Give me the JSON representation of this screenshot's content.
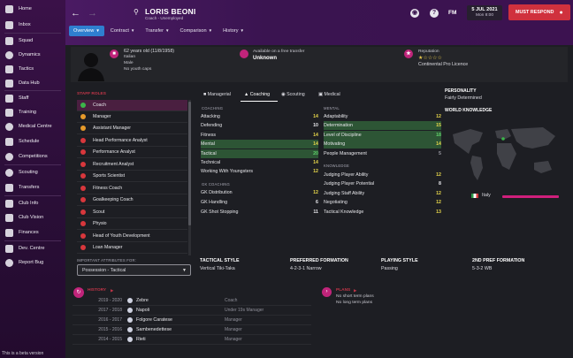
{
  "sidebar": {
    "items": [
      {
        "label": "Home",
        "icon": "home-icon"
      },
      {
        "label": "Inbox",
        "icon": "inbox-icon"
      },
      {
        "label": "Squad",
        "icon": "squad-icon"
      },
      {
        "label": "Dynamics",
        "icon": "dynamics-icon"
      },
      {
        "label": "Tactics",
        "icon": "tactics-icon"
      },
      {
        "label": "Data Hub",
        "icon": "data-hub-icon"
      },
      {
        "label": "Staff",
        "icon": "staff-icon"
      },
      {
        "label": "Training",
        "icon": "training-icon"
      },
      {
        "label": "Medical Centre",
        "icon": "medical-icon"
      },
      {
        "label": "Schedule",
        "icon": "schedule-icon"
      },
      {
        "label": "Competitions",
        "icon": "competitions-icon"
      },
      {
        "label": "Scouting",
        "icon": "scouting-icon"
      },
      {
        "label": "Transfers",
        "icon": "transfers-icon"
      },
      {
        "label": "Club Info",
        "icon": "club-info-icon"
      },
      {
        "label": "Club Vision",
        "icon": "club-vision-icon"
      },
      {
        "label": "Finances",
        "icon": "finances-icon"
      },
      {
        "label": "Dev. Centre",
        "icon": "dev-centre-icon"
      },
      {
        "label": "Report Bug",
        "icon": "report-bug-icon"
      }
    ],
    "beta_text": "This is a beta version"
  },
  "header": {
    "player_name": "LORIS BEONI",
    "player_sub": "Coach - Unemployed",
    "fm": "FM",
    "date": "5 JUL 2021",
    "day_time": "Mon 8:00",
    "must_respond": "MUST RESPOND",
    "tabs": [
      {
        "label": "Overview",
        "active": true
      },
      {
        "label": "Contract",
        "active": false
      },
      {
        "label": "Transfer",
        "active": false
      },
      {
        "label": "Comparison",
        "active": false
      },
      {
        "label": "History",
        "active": false
      }
    ]
  },
  "info": {
    "age_dob": "62 years old (11/8/1958)",
    "nationality": "Italian",
    "gender": "Male",
    "caps": "No youth caps",
    "transfer_label": "Available on a free transfer",
    "transfer_value": "Unknown",
    "reputation_label": "Reputation",
    "reputation_value": "Continental Pro Licence"
  },
  "staff_roles": {
    "title": "STAFF ROLES",
    "items": [
      {
        "label": "Coach",
        "color": "#3cb44a",
        "selected": true
      },
      {
        "label": "Manager",
        "color": "#e69a2a",
        "selected": false
      },
      {
        "label": "Assistant Manager",
        "color": "#e69a2a",
        "selected": false
      },
      {
        "label": "Head Performance Analyst",
        "color": "#d8373c",
        "selected": false
      },
      {
        "label": "Performance Analyst",
        "color": "#d8373c",
        "selected": false
      },
      {
        "label": "Recruitment Analyst",
        "color": "#d8373c",
        "selected": false
      },
      {
        "label": "Sports Scientist",
        "color": "#d8373c",
        "selected": false
      },
      {
        "label": "Fitness Coach",
        "color": "#d8373c",
        "selected": false
      },
      {
        "label": "Goalkeeping Coach",
        "color": "#d8373c",
        "selected": false
      },
      {
        "label": "Scout",
        "color": "#d8373c",
        "selected": false
      },
      {
        "label": "Physio",
        "color": "#d8373c",
        "selected": false
      },
      {
        "label": "Head of Youth Development",
        "color": "#d8373c",
        "selected": false
      },
      {
        "label": "Loan Manager",
        "color": "#d8373c",
        "selected": false
      }
    ],
    "important_label": "IMPORTANT ATTRIBUTES FOR:",
    "select_value": "Possession - Tactical"
  },
  "attr_tabs": [
    {
      "label": "Managerial",
      "active": false
    },
    {
      "label": "Coaching",
      "active": true
    },
    {
      "label": "Scouting",
      "active": false
    },
    {
      "label": "Medical",
      "active": false
    }
  ],
  "coaching": {
    "title": "COACHING",
    "rows": [
      {
        "label": "Attacking",
        "value": "14",
        "cls": "v-y",
        "hl": false
      },
      {
        "label": "Defending",
        "value": "10",
        "cls": "v-w",
        "hl": false
      },
      {
        "label": "Fitness",
        "value": "14",
        "cls": "v-y",
        "hl": false
      },
      {
        "label": "Mental",
        "value": "14",
        "cls": "v-y",
        "hl": true
      },
      {
        "label": "Tactical",
        "value": "20",
        "cls": "v-g",
        "hl": true
      },
      {
        "label": "Technical",
        "value": "14",
        "cls": "v-y",
        "hl": false
      },
      {
        "label": "Working With Youngsters",
        "value": "12",
        "cls": "v-y",
        "hl": false
      }
    ]
  },
  "gk_coaching": {
    "title": "GK COACHING",
    "rows": [
      {
        "label": "GK Distribution",
        "value": "12",
        "cls": "v-y"
      },
      {
        "label": "GK Handling",
        "value": "6",
        "cls": "v-w"
      },
      {
        "label": "GK Shot Stopping",
        "value": "11",
        "cls": "v-w"
      }
    ]
  },
  "mental": {
    "title": "MENTAL",
    "rows": [
      {
        "label": "Adaptability",
        "value": "12",
        "cls": "v-y",
        "hl": false
      },
      {
        "label": "Determination",
        "value": "15",
        "cls": "v-y",
        "hl": true
      },
      {
        "label": "Level of Discipline",
        "value": "18",
        "cls": "v-g",
        "hl": true
      },
      {
        "label": "Motivating",
        "value": "14",
        "cls": "v-y",
        "hl": true
      },
      {
        "label": "People Management",
        "value": "5",
        "cls": "v-gr",
        "hl": false
      }
    ]
  },
  "knowledge": {
    "title": "KNOWLEDGE",
    "rows": [
      {
        "label": "Judging Player Ability",
        "value": "12",
        "cls": "v-y"
      },
      {
        "label": "Judging Player Potential",
        "value": "8",
        "cls": "v-w"
      },
      {
        "label": "Judging Staff Ability",
        "value": "12",
        "cls": "v-y"
      },
      {
        "label": "Negotiating",
        "value": "12",
        "cls": "v-y"
      },
      {
        "label": "Tactical Knowledge",
        "value": "13",
        "cls": "v-y"
      }
    ]
  },
  "personality": {
    "title": "PERSONALITY",
    "value": "Fairly Determined"
  },
  "world_knowledge": {
    "title": "WORLD KNOWLEDGE",
    "country": "Italy"
  },
  "tactical": {
    "style_title": "TACTICAL STYLE",
    "style_value": "Vertical Tiki-Taka",
    "formation_title": "PREFERRED FORMATION",
    "formation_value": "4-2-3-1 Narrow",
    "playing_title": "PLAYING STYLE",
    "playing_value": "Passing",
    "second_title": "2ND PREF FORMATION",
    "second_value": "5-3-2 WB"
  },
  "history": {
    "title": "HISTORY",
    "rows": [
      {
        "years": "2019 - 2020",
        "club": "Zebre",
        "role": "Coach"
      },
      {
        "years": "2017 - 2018",
        "club": "Napoli",
        "role": "Under 19s Manager"
      },
      {
        "years": "2016 - 2017",
        "club": "Folgore Caratese",
        "role": "Manager"
      },
      {
        "years": "2015 - 2016",
        "club": "Sambenedettese",
        "role": "Manager"
      },
      {
        "years": "2014 - 2015",
        "club": "Rieti",
        "role": "Manager"
      }
    ]
  },
  "plans": {
    "title": "PLANS",
    "line1": "No short term plans",
    "line2": "No long term plans"
  },
  "colors": {
    "accent_blue": "#2f7fd0",
    "must_respond_red": "#d0313d",
    "highlight_green": "#2d5535",
    "panel_red": "#c03548",
    "sidebar_purple": "#3a1148"
  }
}
